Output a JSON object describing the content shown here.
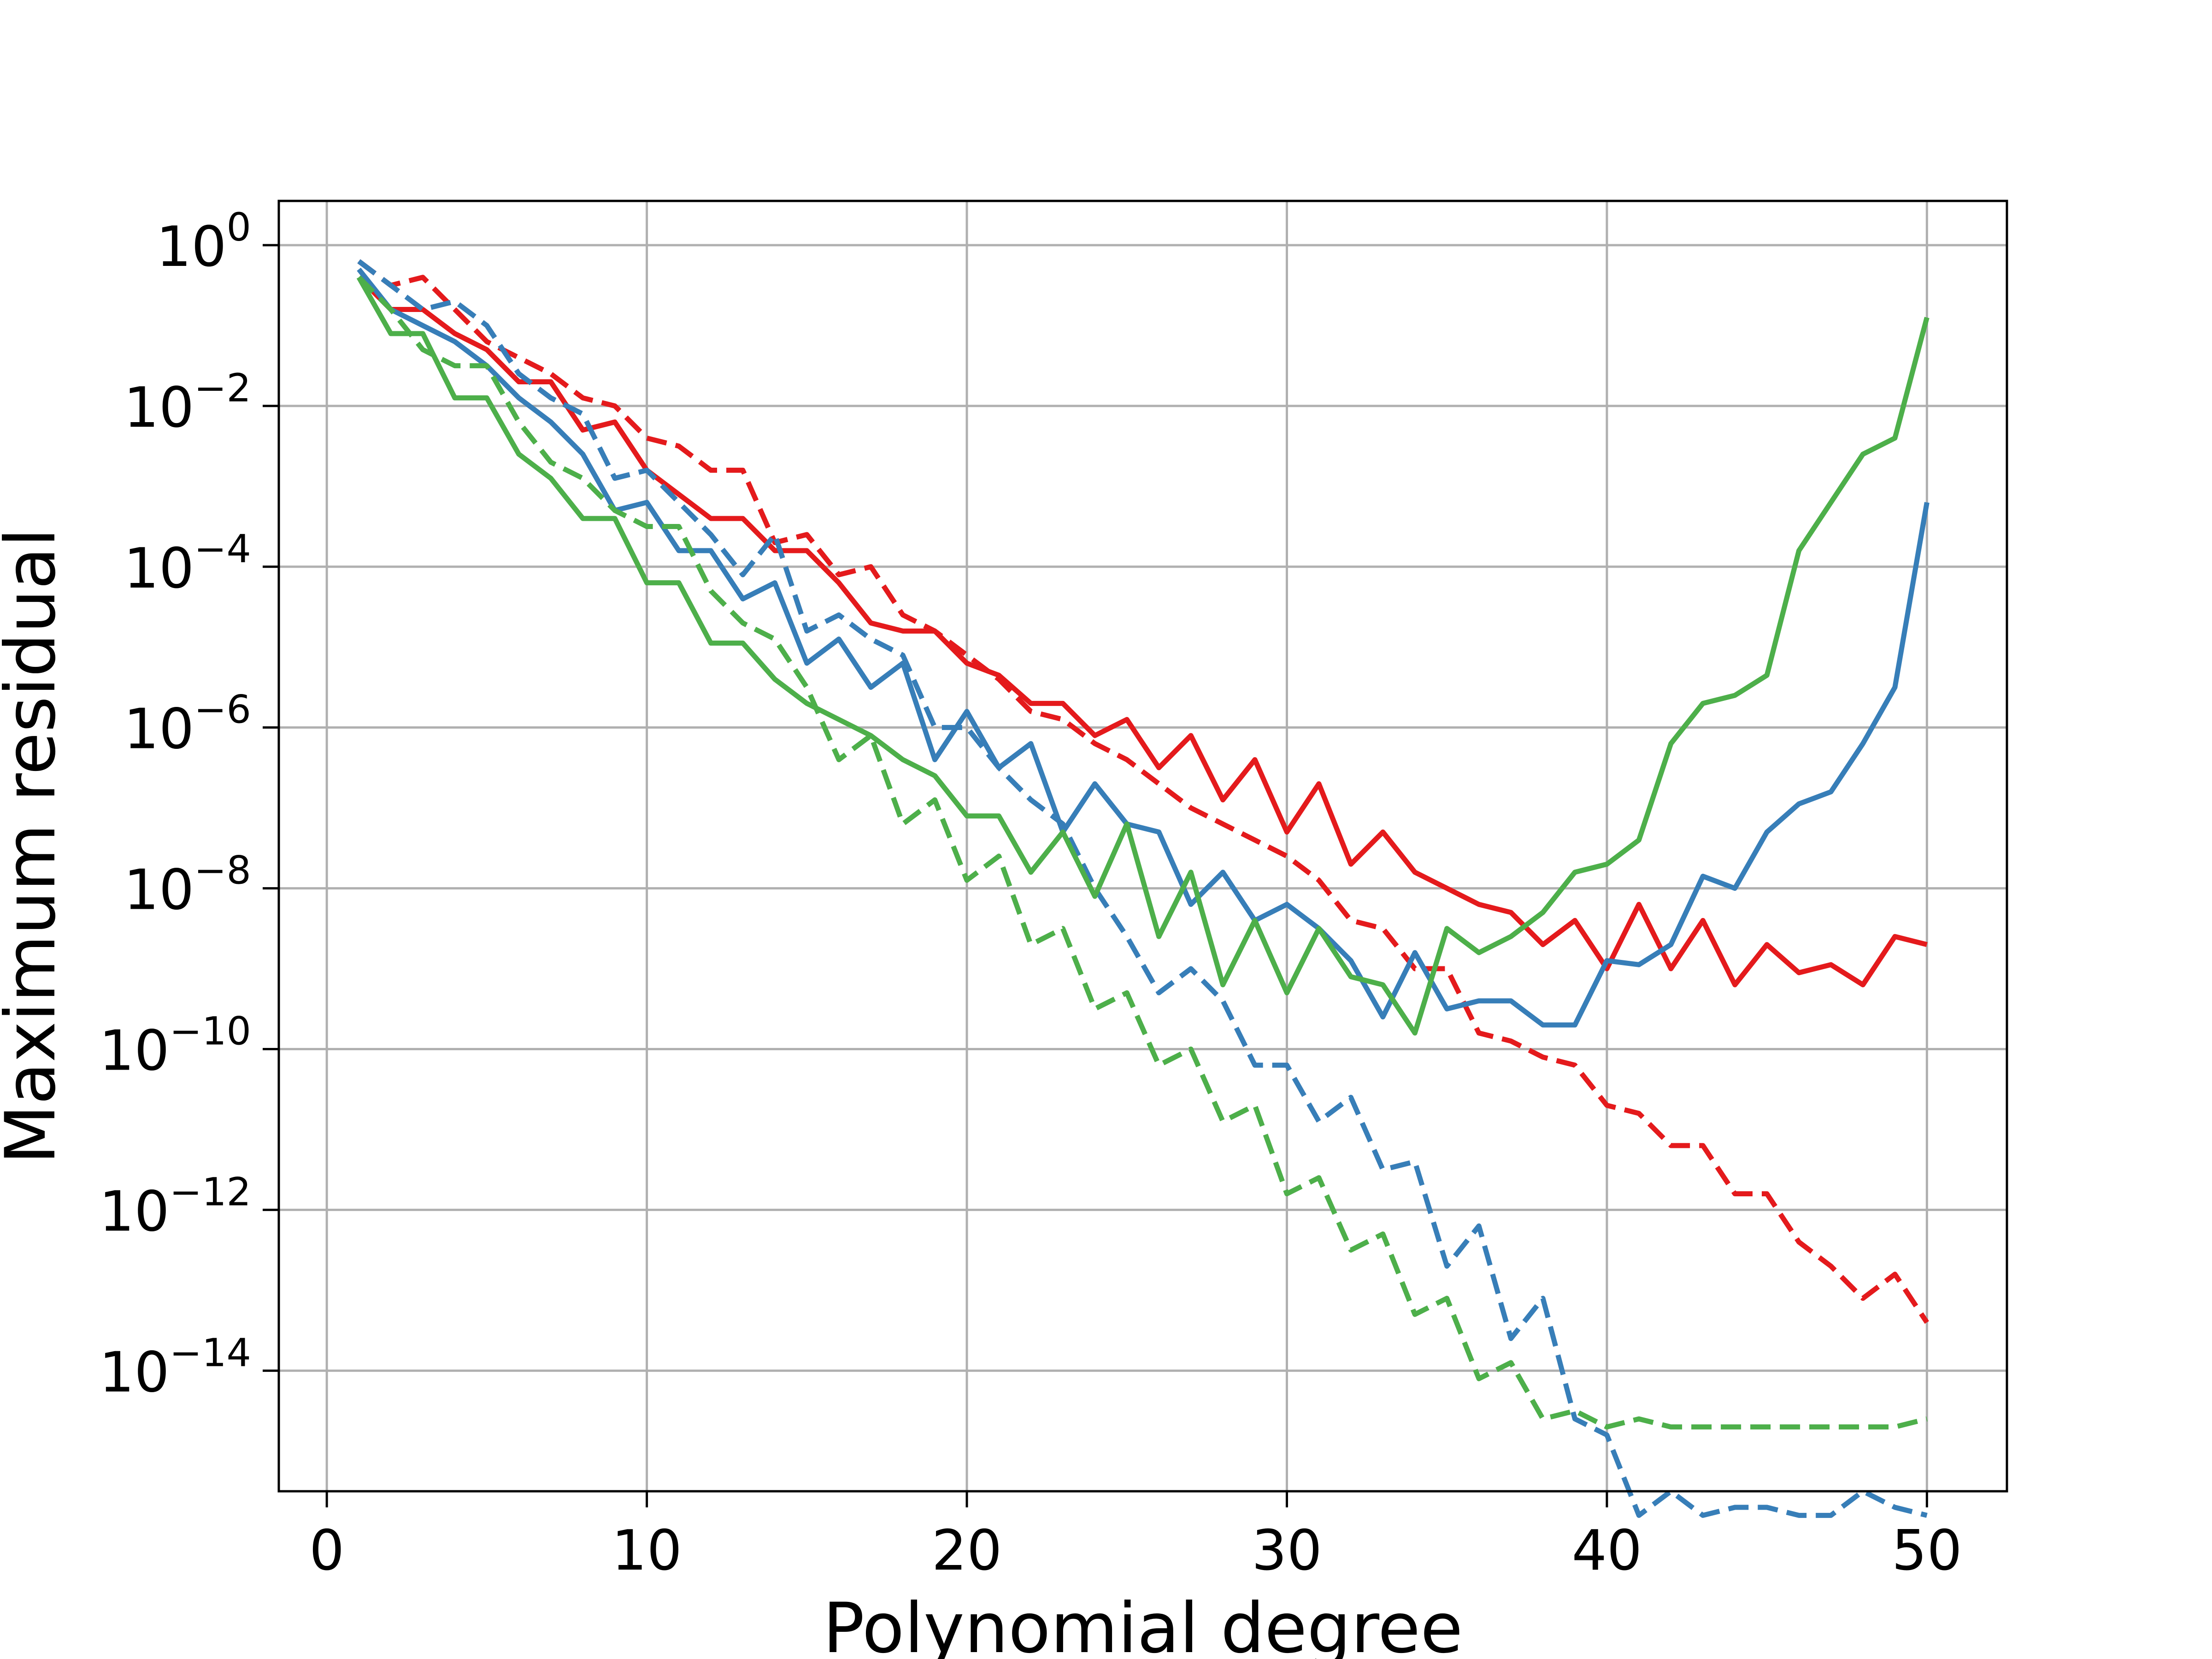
{
  "chart_data": {
    "type": "line",
    "xlabel": "Polynomial degree",
    "ylabel": "Maximum residual",
    "xlim": [
      -1.5,
      52.5
    ],
    "ylim_log10": [
      -15.5,
      0.55
    ],
    "y_scale": "log",
    "grid": true,
    "legend": "none",
    "xticks": [
      0,
      10,
      20,
      30,
      40,
      50
    ],
    "yticks_exponent": [
      0,
      -2,
      -4,
      -6,
      -8,
      -10,
      -12,
      -14
    ],
    "x": [
      1,
      2,
      3,
      4,
      5,
      6,
      7,
      8,
      9,
      10,
      11,
      12,
      13,
      14,
      15,
      16,
      17,
      18,
      19,
      20,
      21,
      22,
      23,
      24,
      25,
      26,
      27,
      28,
      29,
      30,
      31,
      32,
      33,
      34,
      35,
      36,
      37,
      38,
      39,
      40,
      41,
      42,
      43,
      44,
      45,
      46,
      47,
      48,
      49,
      50
    ],
    "series": [
      {
        "color": "#e41a1c",
        "style": "solid",
        "log10_values": [
          -0.4,
          -0.8,
          -0.8,
          -1.1,
          -1.3,
          -1.7,
          -1.7,
          -2.3,
          -2.2,
          -2.8,
          -3.1,
          -3.4,
          -3.4,
          -3.8,
          -3.8,
          -4.2,
          -4.7,
          -4.8,
          -4.8,
          -5.2,
          -5.35,
          -5.7,
          -5.7,
          -6.1,
          -5.9,
          -6.5,
          -6.1,
          -6.9,
          -6.4,
          -7.3,
          -6.7,
          -7.7,
          -7.3,
          -7.8,
          -8.0,
          -8.2,
          -8.3,
          -8.7,
          -8.4,
          -9.0,
          -8.2,
          -9.0,
          -8.4,
          -9.2,
          -8.7,
          -9.05,
          -8.95,
          -9.2,
          -8.6,
          -8.7
        ]
      },
      {
        "color": "#e41a1c",
        "style": "dashed",
        "log10_values": [
          -0.2,
          -0.5,
          -0.4,
          -0.8,
          -1.2,
          -1.4,
          -1.6,
          -1.9,
          -2.0,
          -2.4,
          -2.5,
          -2.8,
          -2.8,
          -3.7,
          -3.6,
          -4.1,
          -4.0,
          -4.6,
          -4.8,
          -5.1,
          -5.4,
          -5.8,
          -5.9,
          -6.2,
          -6.4,
          -6.7,
          -7.0,
          -7.2,
          -7.4,
          -7.6,
          -7.9,
          -8.4,
          -8.5,
          -9.0,
          -9.0,
          -9.8,
          -9.9,
          -10.1,
          -10.2,
          -10.7,
          -10.8,
          -11.2,
          -11.2,
          -11.8,
          -11.8,
          -12.4,
          -12.7,
          -13.1,
          -12.8,
          -13.4
        ]
      },
      {
        "color": "#377eb8",
        "style": "solid",
        "log10_values": [
          -0.3,
          -0.8,
          -1.0,
          -1.2,
          -1.5,
          -1.9,
          -2.2,
          -2.6,
          -3.3,
          -3.2,
          -3.8,
          -3.8,
          -4.4,
          -4.2,
          -5.2,
          -4.9,
          -5.5,
          -5.2,
          -6.4,
          -5.8,
          -6.5,
          -6.2,
          -7.3,
          -6.7,
          -7.2,
          -7.3,
          -8.2,
          -7.8,
          -8.4,
          -8.2,
          -8.5,
          -8.9,
          -9.6,
          -8.8,
          -9.5,
          -9.4,
          -9.4,
          -9.7,
          -9.7,
          -8.9,
          -8.95,
          -8.7,
          -7.85,
          -8.0,
          -7.3,
          -6.95,
          -6.8,
          -6.2,
          -5.5,
          -3.2
        ]
      },
      {
        "color": "#377eb8",
        "style": "dashed",
        "log10_values": [
          -0.2,
          -0.5,
          -0.8,
          -0.7,
          -1.0,
          -1.6,
          -1.9,
          -2.1,
          -2.9,
          -2.8,
          -3.2,
          -3.6,
          -4.1,
          -3.6,
          -4.8,
          -4.6,
          -4.9,
          -5.1,
          -6.0,
          -6.0,
          -6.5,
          -6.9,
          -7.2,
          -8.0,
          -8.6,
          -9.3,
          -9.0,
          -9.4,
          -10.2,
          -10.2,
          -10.9,
          -10.6,
          -11.5,
          -11.4,
          -12.7,
          -12.2,
          -13.6,
          -13.1,
          -14.6,
          -14.8,
          -15.8,
          -15.5,
          -15.8,
          -15.7,
          -15.7,
          -15.8,
          -15.8,
          -15.5,
          -15.7,
          -15.8
        ]
      },
      {
        "color": "#4daf4a",
        "style": "solid",
        "log10_values": [
          -0.4,
          -1.1,
          -1.1,
          -1.9,
          -1.9,
          -2.6,
          -2.9,
          -3.4,
          -3.4,
          -4.2,
          -4.2,
          -4.95,
          -4.95,
          -5.4,
          -5.7,
          -5.9,
          -6.1,
          -6.4,
          -6.6,
          -7.1,
          -7.1,
          -7.8,
          -7.3,
          -8.1,
          -7.2,
          -8.6,
          -7.8,
          -9.2,
          -8.4,
          -9.3,
          -8.5,
          -9.1,
          -9.2,
          -9.8,
          -8.5,
          -8.8,
          -8.6,
          -8.3,
          -7.8,
          -7.7,
          -7.4,
          -6.2,
          -5.7,
          -5.6,
          -5.35,
          -3.8,
          -3.2,
          -2.6,
          -2.4,
          -0.9
        ]
      },
      {
        "color": "#4daf4a",
        "style": "dashed",
        "log10_values": [
          -0.4,
          -0.8,
          -1.3,
          -1.5,
          -1.5,
          -2.2,
          -2.7,
          -2.9,
          -3.3,
          -3.5,
          -3.5,
          -4.3,
          -4.7,
          -4.9,
          -5.5,
          -6.4,
          -6.1,
          -7.2,
          -6.9,
          -7.9,
          -7.6,
          -8.7,
          -8.5,
          -9.5,
          -9.3,
          -10.2,
          -10.0,
          -10.9,
          -10.7,
          -11.8,
          -11.6,
          -12.5,
          -12.3,
          -13.3,
          -13.1,
          -14.1,
          -13.9,
          -14.6,
          -14.5,
          -14.7,
          -14.6,
          -14.7,
          -14.7,
          -14.7,
          -14.7,
          -14.7,
          -14.7,
          -14.7,
          -14.7,
          -14.6
        ]
      }
    ]
  }
}
